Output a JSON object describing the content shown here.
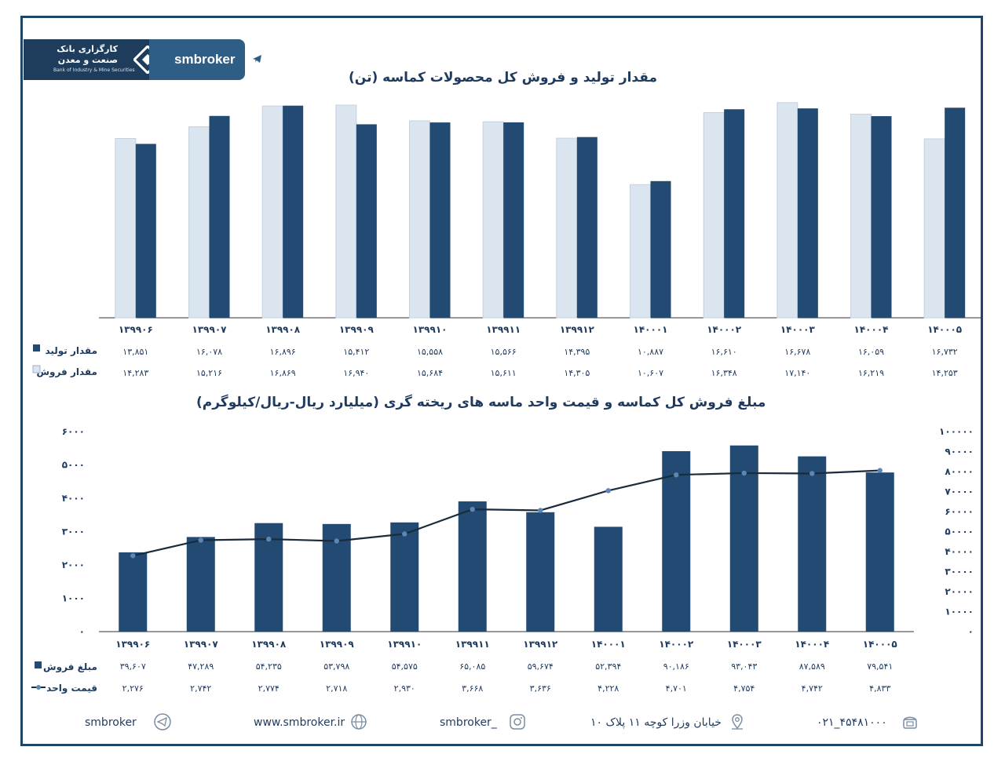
{
  "header": {
    "brand": "smbroker",
    "logo_fa_line1": "کارگزاری بانک",
    "logo_fa_line2": "صنعت و معدن",
    "logo_en": "Bank of Industry & Mine Securities"
  },
  "colors": {
    "dark": "#224a72",
    "light": "#dbe5ef",
    "line": "#1a2b3c"
  },
  "chart1_title": "مقدار تولید و فروش کل محصولات کماسه (تن)",
  "chart2_title": "مبلغ فروش کل کماسه و قیمت واحد ماسه های ریخته گری  (میلیارد ریال-ریال/کیلوگرم)",
  "chart_data": [
    {
      "type": "bar",
      "categories": [
        "۱۳۹۹۰۶",
        "۱۳۹۹۰۷",
        "۱۳۹۹۰۸",
        "۱۳۹۹۰۹",
        "۱۳۹۹۱۰",
        "۱۳۹۹۱۱",
        "۱۳۹۹۱۲",
        "۱۴۰۰۰۱",
        "۱۴۰۰۰۲",
        "۱۴۰۰۰۳",
        "۱۴۰۰۰۴",
        "۱۴۰۰۰۵"
      ],
      "series": [
        {
          "name": "مقدار تولید",
          "values": [
            13851,
            16078,
            16896,
            15412,
            15558,
            15566,
            14395,
            10887,
            16610,
            16678,
            16059,
            16732
          ],
          "labels": [
            "۱۳,۸۵۱",
            "۱۶,۰۷۸",
            "۱۶,۸۹۶",
            "۱۵,۴۱۲",
            "۱۵,۵۵۸",
            "۱۵,۵۶۶",
            "۱۴,۳۹۵",
            "۱۰,۸۸۷",
            "۱۶,۶۱۰",
            "۱۶,۶۷۸",
            "۱۶,۰۵۹",
            "۱۶,۷۳۲"
          ]
        },
        {
          "name": "مقدار فروش",
          "values": [
            14283,
            15216,
            16869,
            16940,
            15684,
            15611,
            14305,
            10607,
            16348,
            17140,
            16219,
            14253
          ],
          "labels": [
            "۱۴,۲۸۳",
            "۱۵,۲۱۶",
            "۱۶,۸۶۹",
            "۱۶,۹۴۰",
            "۱۵,۶۸۴",
            "۱۵,۶۱۱",
            "۱۴,۳۰۵",
            "۱۰,۶۰۷",
            "۱۶,۳۴۸",
            "۱۷,۱۴۰",
            "۱۶,۲۱۹",
            "۱۴,۲۵۳"
          ]
        }
      ]
    },
    {
      "type": "bar",
      "categories": [
        "۱۳۹۹۰۶",
        "۱۳۹۹۰۷",
        "۱۳۹۹۰۸",
        "۱۳۹۹۰۹",
        "۱۳۹۹۱۰",
        "۱۳۹۹۱۱",
        "۱۳۹۹۱۲",
        "۱۴۰۰۰۱",
        "۱۴۰۰۰۲",
        "۱۴۰۰۰۳",
        "۱۴۰۰۰۴",
        "۱۴۰۰۰۵"
      ],
      "ylim_left": [
        0,
        6000
      ],
      "ylim_right": [
        0,
        100000
      ],
      "left_ticks": [
        "۰",
        "۱۰۰۰",
        "۲۰۰۰",
        "۳۰۰۰",
        "۴۰۰۰",
        "۵۰۰۰",
        "۶۰۰۰"
      ],
      "right_ticks": [
        "۰",
        "۱۰۰۰۰",
        "۲۰۰۰۰",
        "۳۰۰۰۰",
        "۴۰۰۰۰",
        "۵۰۰۰۰",
        "۶۰۰۰۰",
        "۷۰۰۰۰",
        "۸۰۰۰۰",
        "۹۰۰۰۰",
        "۱۰۰۰۰۰"
      ],
      "series": [
        {
          "name": "مبلغ فروش",
          "kind": "bar",
          "axis": "right",
          "values": [
            39607,
            47289,
            54235,
            53798,
            54575,
            65085,
            59674,
            52394,
            90186,
            93043,
            87589,
            79541
          ],
          "labels": [
            "۳۹,۶۰۷",
            "۴۷,۲۸۹",
            "۵۴,۲۳۵",
            "۵۳,۷۹۸",
            "۵۴,۵۷۵",
            "۶۵,۰۸۵",
            "۵۹,۶۷۴",
            "۵۲,۳۹۴",
            "۹۰,۱۸۶",
            "۹۳,۰۴۳",
            "۸۷,۵۸۹",
            "۷۹,۵۴۱"
          ]
        },
        {
          "name": "قیمت واحد",
          "kind": "line",
          "axis": "left",
          "values": [
            2276,
            2742,
            2774,
            2718,
            2930,
            3668,
            3636,
            4228,
            4701,
            4754,
            4742,
            4833
          ],
          "labels": [
            "۲,۲۷۶",
            "۲,۷۴۲",
            "۲,۷۷۴",
            "۲,۷۱۸",
            "۲,۹۳۰",
            "۳,۶۶۸",
            "۳,۶۳۶",
            "۴,۲۲۸",
            "۴,۷۰۱",
            "۴,۷۵۴",
            "۴,۷۴۲",
            "۴,۸۳۳"
          ]
        }
      ]
    }
  ],
  "footer": {
    "telegram": "smbroker",
    "website": "www.smbroker.ir",
    "instagram": "smbroker_",
    "address": "خیابان وزرا کوچه ۱۱ پلاک ۱۰",
    "phone": "۰۲۱_۴۵۴۸۱۰۰۰"
  }
}
